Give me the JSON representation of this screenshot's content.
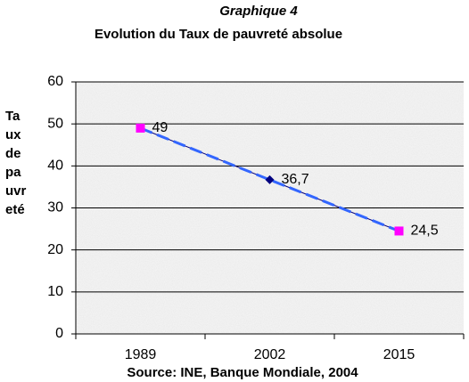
{
  "chart_data": {
    "type": "line",
    "title": "Graphique 4",
    "subtitle": "Evolution du Taux de pauvreté absolue",
    "y_label": "Taux de pauvreté",
    "source": "Source: INE, Banque Mondiale, 2004",
    "categories": [
      "1989",
      "2002",
      "2015"
    ],
    "series": [
      {
        "color": "#3366ff",
        "marker_colors": [
          "#ff00ff",
          "#000080",
          "#ff00ff"
        ],
        "values": [
          49,
          36.7,
          24.5
        ],
        "value_labels": [
          "49",
          "36,7",
          "24,5"
        ]
      }
    ],
    "ylim": [
      0,
      60
    ],
    "yticks": [
      0,
      10,
      20,
      30,
      40,
      50,
      60
    ],
    "grid": true
  }
}
